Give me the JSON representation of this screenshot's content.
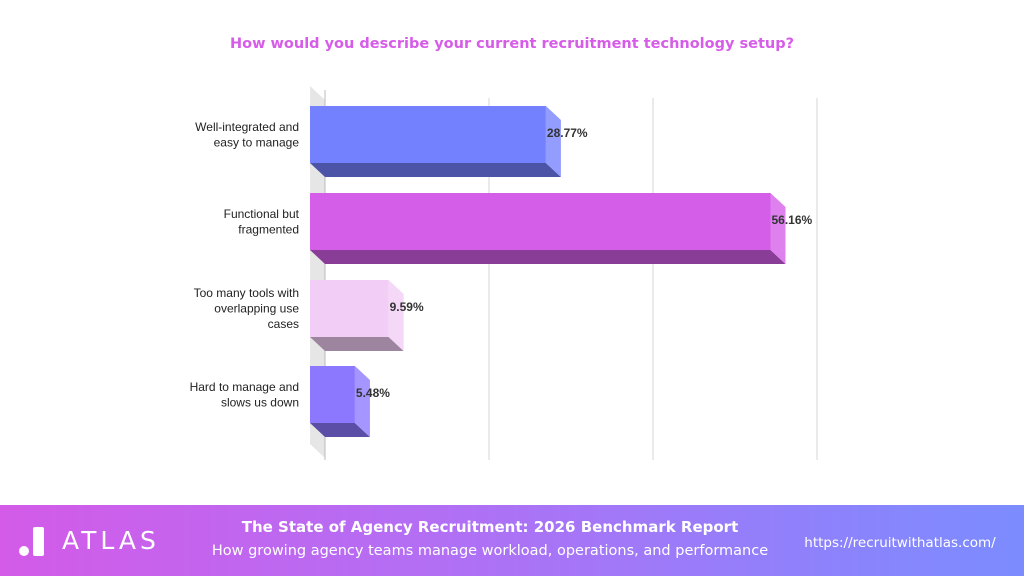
{
  "chart_data": {
    "type": "bar",
    "orientation": "horizontal",
    "title": "How would you describe your current recruitment technology setup?",
    "categories": [
      [
        "Well-integrated and",
        "easy to manage"
      ],
      [
        "Functional but",
        "fragmented"
      ],
      [
        "Too many tools with",
        "overlapping use",
        "cases"
      ],
      [
        "Hard to manage and",
        "slows us down"
      ]
    ],
    "values": [
      28.77,
      56.16,
      9.59,
      5.48
    ],
    "value_labels": [
      "28.77%",
      "56.16%",
      "9.59%",
      "5.48%"
    ],
    "bar_colors": [
      "#7381ff",
      "#d55ee9",
      "#f2cdf5",
      "#8c78ff"
    ],
    "xlim": [
      0,
      60
    ],
    "grid": true,
    "legend": "none",
    "style": "3d"
  },
  "colors": {
    "title": "#d75ce9",
    "footer_start": "#d35be8",
    "footer_end": "#7b8cff"
  },
  "footer": {
    "logo_text": "ATLAS",
    "logo_icon": "atlas-logo-icon",
    "report_title": "The State of Agency Recruitment: 2026 Benchmark Report",
    "report_subtitle": "How growing agency teams manage workload, operations, and performance",
    "website": "https://recruitwithatlas.com/"
  }
}
